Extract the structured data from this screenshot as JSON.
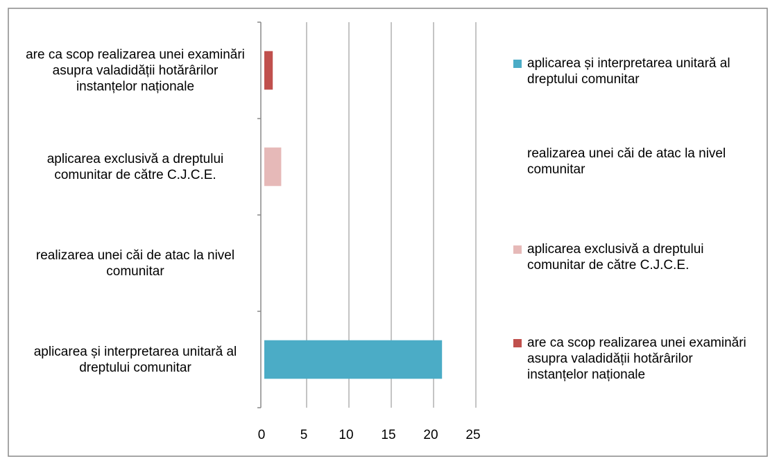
{
  "chart_data": {
    "type": "hbar",
    "categories": [
      "aplicarea și interpretarea unitară al dreptului comunitar",
      "realizarea unei căi de atac la nivel comunitar",
      "aplicarea exclusivă a dreptului comunitar de către C.J.C.E.",
      "are ca scop realizarea unei examinări asupra valadidății hotărârilor instanțelor naționale"
    ],
    "values": [
      21,
      0,
      2,
      1
    ],
    "colors": [
      "#4bacc6",
      "#ffffff",
      "#e6b9b8",
      "#c0504d"
    ],
    "xlim": [
      0,
      25
    ],
    "xticks": [
      0,
      5,
      10,
      15,
      20,
      25
    ],
    "grid": true,
    "legend": "right"
  }
}
